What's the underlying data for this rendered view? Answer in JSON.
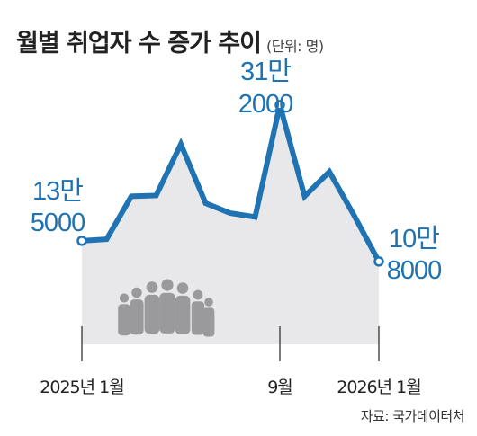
{
  "title": "월별 취업자 수 증가 추이",
  "unit": "(단위: 명)",
  "source": "자료: 국가데이터처",
  "colors": {
    "line": "#1f73b3",
    "area": "#e8e8ea",
    "people": "#9a9a9c",
    "text": "#222222"
  },
  "icons": [
    "people-icon"
  ],
  "chart_data": {
    "type": "area",
    "x": [
      "2025-01",
      "2025-02",
      "2025-03",
      "2025-04",
      "2025-05",
      "2025-06",
      "2025-07",
      "2025-08",
      "2025-09",
      "2025-10",
      "2025-11",
      "2025-12",
      "2026-01"
    ],
    "values": [
      135000,
      137000,
      193000,
      194000,
      261000,
      184000,
      171000,
      166000,
      312000,
      193000,
      225000,
      168000,
      108000
    ],
    "xticks": [
      {
        "index": 0,
        "label": "2025년 1월"
      },
      {
        "index": 8,
        "label": "9월"
      },
      {
        "index": 12,
        "label": "2026년 1월"
      }
    ],
    "labels": [
      {
        "index": 0,
        "line1": "13만",
        "line2": "5000"
      },
      {
        "index": 8,
        "line1": "31만",
        "line2": "2000"
      },
      {
        "index": 12,
        "line1": "10만",
        "line2": "8000"
      }
    ],
    "ylim": [
      0,
      320000
    ]
  }
}
